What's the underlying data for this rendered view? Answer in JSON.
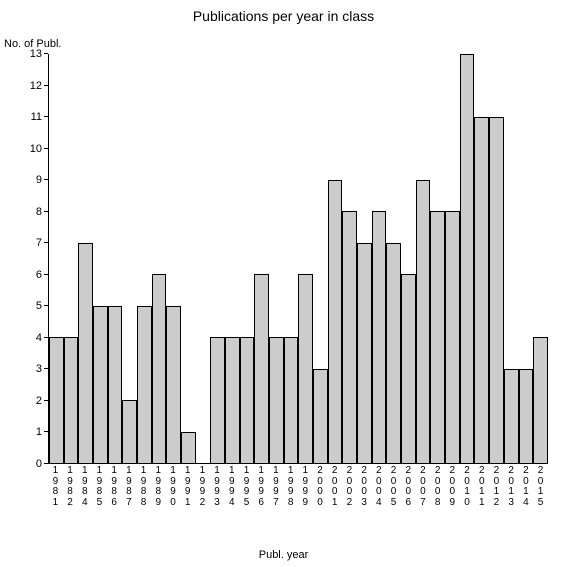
{
  "chart": {
    "type": "bar",
    "title": "Publications per year in class",
    "title_fontsize": 14,
    "y_axis_label": "No. of Publ.",
    "x_axis_label": "Publ. year",
    "label_fontsize": 11,
    "background_color": "#ffffff",
    "axis_color": "#000000",
    "bar_color": "#cccccc",
    "bar_border_color": "#000000",
    "ylim": [
      0,
      13
    ],
    "ytick_step": 1,
    "categories": [
      "1981",
      "1982",
      "1984",
      "1985",
      "1986",
      "1987",
      "1988",
      "1989",
      "1990",
      "1991",
      "1992",
      "1993",
      "1994",
      "1995",
      "1996",
      "1997",
      "1998",
      "1999",
      "2000",
      "2001",
      "2002",
      "2003",
      "2004",
      "2005",
      "2006",
      "2007",
      "2008",
      "2009",
      "2010",
      "2011",
      "2012",
      "2013",
      "2014",
      "2015"
    ],
    "values": [
      4,
      4,
      7,
      5,
      5,
      2,
      5,
      6,
      5,
      1,
      0,
      4,
      4,
      4,
      6,
      4,
      4,
      6,
      3,
      9,
      8,
      7,
      8,
      7,
      6,
      9,
      8,
      8,
      13,
      11,
      11,
      3,
      3,
      4
    ]
  }
}
